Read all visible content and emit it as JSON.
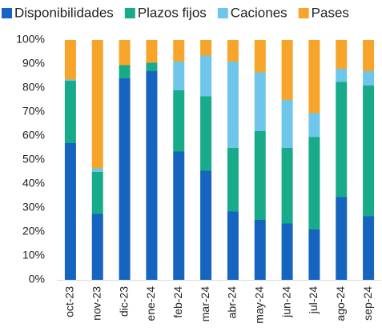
{
  "chart_data": {
    "type": "stacked_bar_100",
    "categories": [
      "oct-23",
      "nov-23",
      "dic-23",
      "ene-24",
      "feb-24",
      "mar-24",
      "abr-24",
      "may-24",
      "jun-24",
      "jul-24",
      "ago-24",
      "sep-24"
    ],
    "series": [
      {
        "name": "Disponibilidades",
        "color": "#1565c0",
        "values": [
          57,
          27.5,
          84,
          87,
          53.5,
          45.5,
          28.5,
          25,
          23.5,
          21,
          34.5,
          26.5
        ]
      },
      {
        "name": "Plazos fijos",
        "color": "#17ab8a",
        "values": [
          26,
          17.5,
          5.5,
          3.5,
          25.5,
          31,
          26.5,
          37,
          31.5,
          38.5,
          48,
          54.5
        ]
      },
      {
        "name": "Caciones",
        "color": "#6ec6ea",
        "values": [
          0.5,
          1.5,
          0,
          0,
          12,
          17,
          36,
          24.5,
          20,
          10,
          5.5,
          6
        ]
      },
      {
        "name": "Pases",
        "color": "#f7a52a",
        "values": [
          16.5,
          53.5,
          10.5,
          9.5,
          9,
          6.5,
          9,
          13.5,
          25,
          30.5,
          12,
          13
        ]
      }
    ],
    "ylim": [
      0,
      100
    ],
    "yticks": [
      {
        "value": 0,
        "label": "0%"
      },
      {
        "value": 10,
        "label": "10%"
      },
      {
        "value": 20,
        "label": "20%"
      },
      {
        "value": 30,
        "label": "30%"
      },
      {
        "value": 40,
        "label": "40%"
      },
      {
        "value": 50,
        "label": "50%"
      },
      {
        "value": 60,
        "label": "60%"
      },
      {
        "value": 70,
        "label": "70%"
      },
      {
        "value": 80,
        "label": "80%"
      },
      {
        "value": 90,
        "label": "90%"
      },
      {
        "value": 100,
        "label": "100%"
      }
    ],
    "legend": "top",
    "grid": false
  }
}
